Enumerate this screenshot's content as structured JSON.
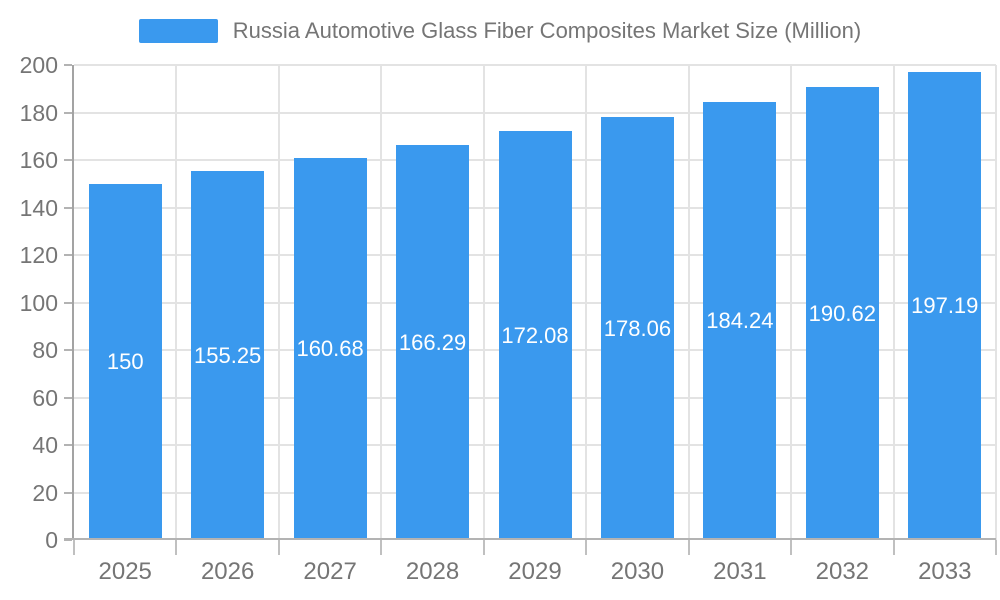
{
  "chart_data": {
    "type": "bar",
    "title": "Russia Automotive Glass Fiber Composites Market Size (Million)",
    "legend_position": "top",
    "categories": [
      "2025",
      "2026",
      "2027",
      "2028",
      "2029",
      "2030",
      "2031",
      "2032",
      "2033"
    ],
    "values": [
      150,
      155.25,
      160.68,
      166.29,
      172.08,
      178.06,
      184.24,
      190.62,
      197.19
    ],
    "value_labels": [
      "150",
      "155.25",
      "160.68",
      "166.29",
      "172.08",
      "178.06",
      "184.24",
      "190.62",
      "197.19"
    ],
    "xlabel": "",
    "ylabel": "",
    "ylim": [
      0,
      200
    ],
    "y_ticks": [
      0,
      20,
      40,
      60,
      80,
      100,
      120,
      140,
      160,
      180,
      200
    ],
    "grid": true,
    "bar_color": "#3a99ee",
    "value_label_color": "#ffffff",
    "grid_color": "#e3e3e3",
    "axis_color": "#a3a3a3",
    "tick_label_color": "#757575"
  }
}
